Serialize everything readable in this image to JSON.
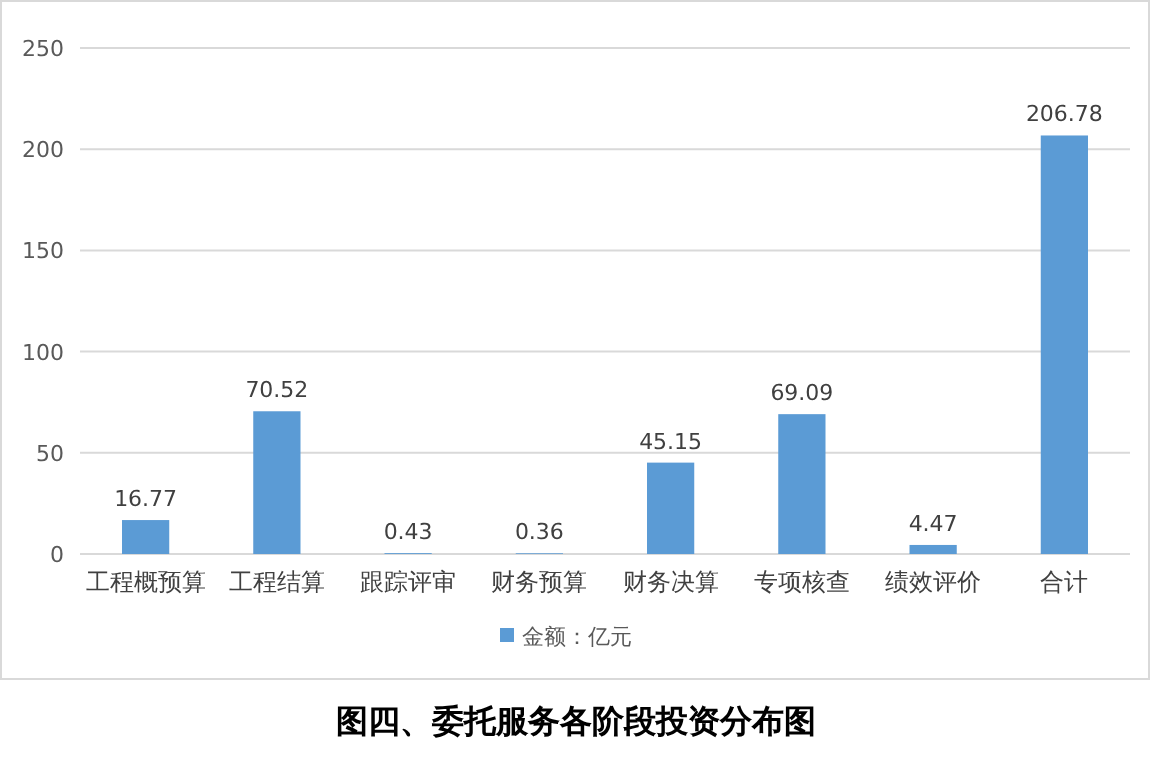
{
  "chart_data": {
    "type": "bar",
    "title": "图四、委托服务各阶段投资分布图",
    "categories": [
      "工程概预算",
      "工程结算",
      "跟踪评审",
      "财务预算",
      "财务决算",
      "专项核查",
      "绩效评价",
      "合计"
    ],
    "series": [
      {
        "name": "金额：亿元",
        "color": "#5b9bd5",
        "values": [
          16.77,
          70.52,
          0.43,
          0.36,
          45.15,
          69.09,
          4.47,
          206.78
        ]
      }
    ],
    "ylim": [
      0,
      250
    ],
    "yticks": [
      0,
      50,
      100,
      150,
      200,
      250
    ],
    "grid": "y",
    "legend": "bottom",
    "data_labels": true
  }
}
